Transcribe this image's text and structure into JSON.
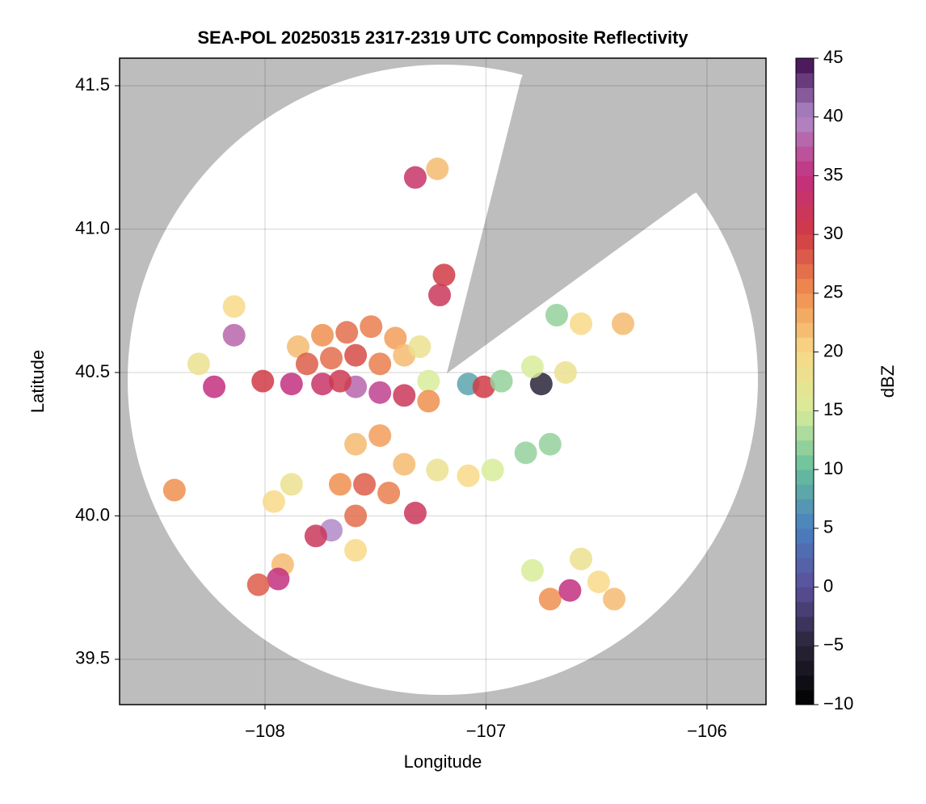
{
  "chart_data": {
    "type": "scatter",
    "title": "SEA-POL 20250315 2317-2319 UTC Composite Reflectivity",
    "xlabel": "Longitude",
    "ylabel": "Latitude",
    "xlim": [
      -108.658,
      -105.733
    ],
    "ylim": [
      39.342,
      41.596
    ],
    "xticks": [
      {
        "value": -108,
        "label": "−108"
      },
      {
        "value": -107,
        "label": "−107"
      },
      {
        "value": -106,
        "label": "−106"
      }
    ],
    "yticks": [
      39.5,
      {
        "value": 40,
        "label": "40.0"
      },
      40.5,
      {
        "value": 41,
        "label": "41.0"
      },
      41.5
    ],
    "grid": true,
    "colorbar": {
      "label": "dBZ",
      "clim": [
        -10,
        45
      ],
      "ticks": [
        {
          "value": -10,
          "label": "−10"
        },
        {
          "value": -5,
          "label": "−5"
        },
        0,
        5,
        10,
        15,
        20,
        25,
        30,
        35,
        40,
        45
      ],
      "colors": [
        "#000000",
        "#2a2438",
        "#5b4f9a",
        "#4a7fc1",
        "#66bf9c",
        "#d8ec9a",
        "#f8d987",
        "#f08f4f",
        "#d03b45",
        "#c2307f",
        "#b08ac8",
        "#3f0a4f"
      ]
    },
    "x": [
      -107.85,
      -107.74,
      -107.63,
      -107.52,
      -107.41,
      -107.81,
      -107.7,
      -107.59,
      -107.48,
      -107.37,
      -107.3,
      -107.26,
      -107.88,
      -107.74,
      -107.59,
      -107.48,
      -107.37,
      -107.26,
      -107.66,
      -108.14,
      -108.14,
      -108.3,
      -108.23,
      -108.01,
      -107.32,
      -107.22,
      -107.19,
      -107.21,
      -107.08,
      -107.01,
      -106.75,
      -106.93,
      -106.79,
      -106.64,
      -106.57,
      -106.38,
      -106.68,
      -106.71,
      -106.82,
      -107.59,
      -107.48,
      -107.37,
      -107.22,
      -107.08,
      -106.97,
      -107.66,
      -107.55,
      -107.44,
      -107.59,
      -107.7,
      -107.77,
      -107.59,
      -107.88,
      -107.96,
      -107.32,
      -107.92,
      -107.94,
      -108.03,
      -108.41,
      -106.71,
      -106.62,
      -106.49,
      -106.42,
      -106.57,
      -106.79
    ],
    "y": [
      40.59,
      40.63,
      40.64,
      40.66,
      40.62,
      40.53,
      40.55,
      40.56,
      40.53,
      40.56,
      40.59,
      40.47,
      40.46,
      40.46,
      40.45,
      40.43,
      40.42,
      40.4,
      40.47,
      40.73,
      40.63,
      40.53,
      40.45,
      40.47,
      41.18,
      41.21,
      40.84,
      40.77,
      40.46,
      40.45,
      40.46,
      40.47,
      40.52,
      40.5,
      40.67,
      40.67,
      40.7,
      40.25,
      40.22,
      40.25,
      40.28,
      40.18,
      40.16,
      40.14,
      40.16,
      40.11,
      40.11,
      40.08,
      40.0,
      39.95,
      39.93,
      39.88,
      40.11,
      40.05,
      40.01,
      39.83,
      39.78,
      39.76,
      40.09,
      39.71,
      39.74,
      39.77,
      39.71,
      39.85,
      39.81
    ],
    "values": [
      22,
      25,
      27,
      26,
      24,
      28,
      27,
      29,
      26,
      22,
      18,
      15,
      35,
      33,
      38,
      36,
      32,
      25,
      31,
      20,
      38,
      18,
      35,
      30,
      33,
      22,
      30,
      32,
      8,
      30,
      -5,
      12,
      15,
      18,
      20,
      22,
      12,
      12,
      12,
      22,
      24,
      22,
      18,
      20,
      15,
      25,
      28,
      26,
      27,
      40,
      32,
      20,
      18,
      20,
      32,
      22,
      35,
      28,
      25,
      25,
      35,
      20,
      22,
      18,
      15
    ]
  }
}
